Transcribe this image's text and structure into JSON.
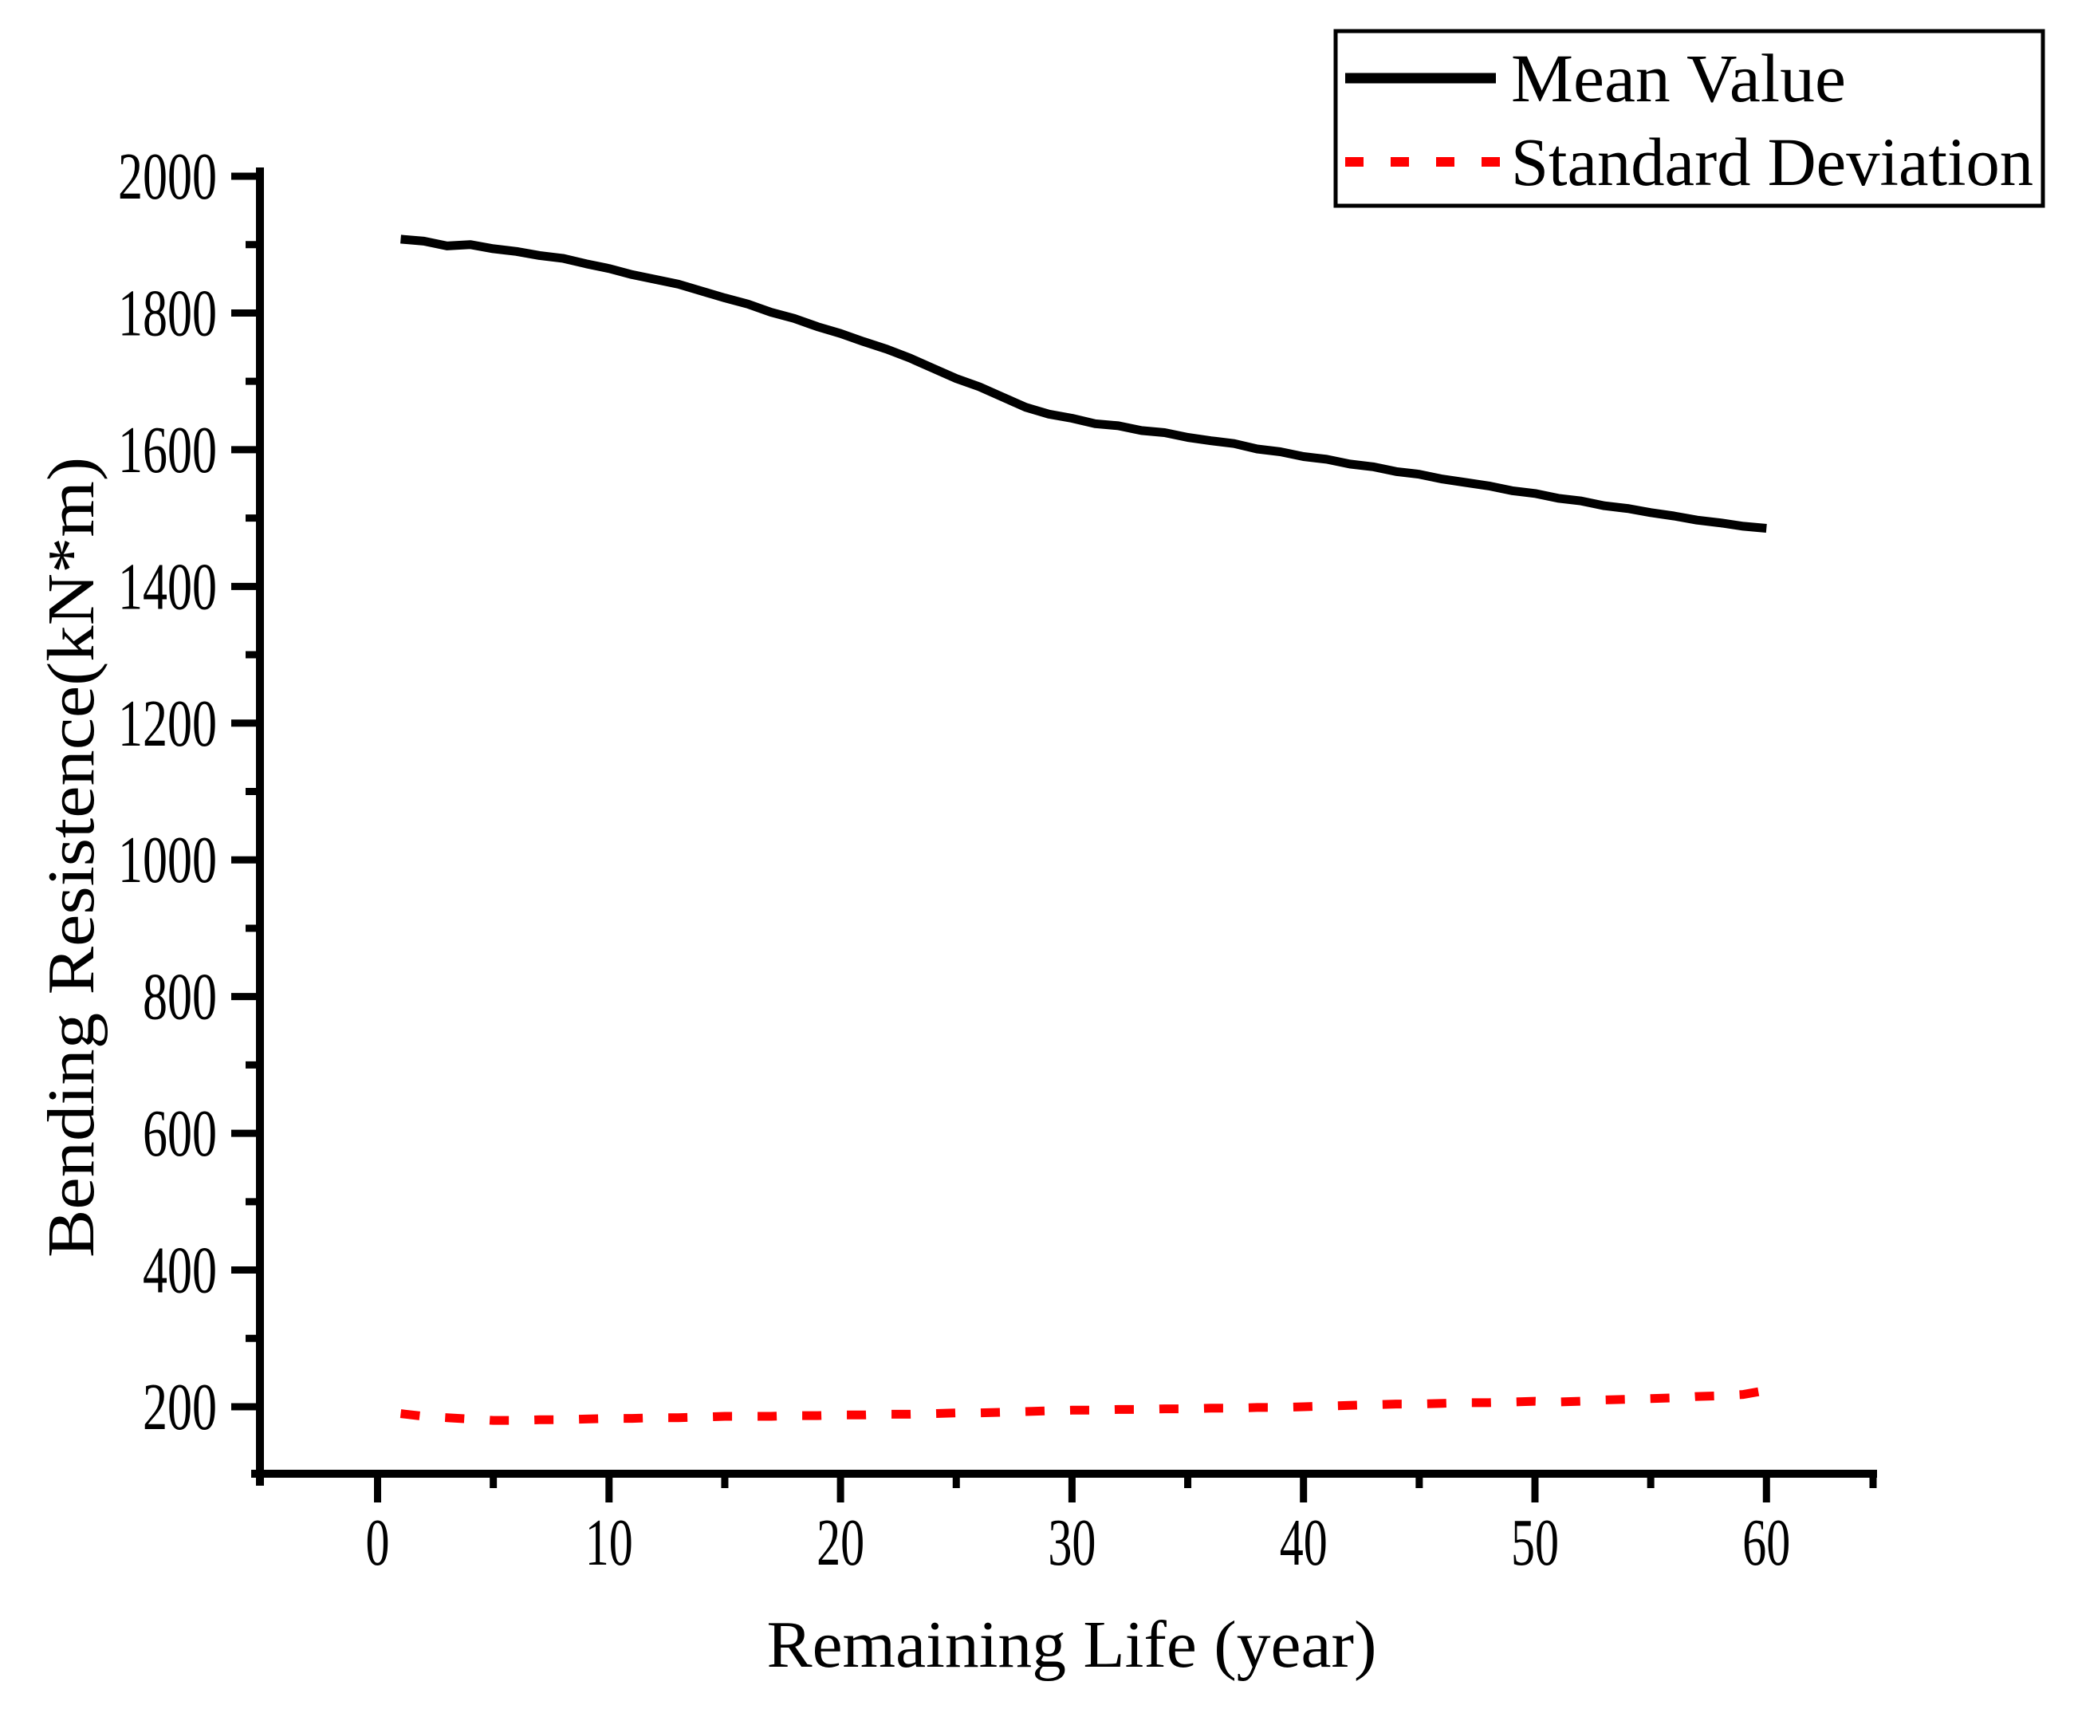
{
  "chart_data": {
    "type": "line",
    "title": "",
    "xlabel": "Remaining Life (year)",
    "ylabel": "Bending Resistence(kN*m)",
    "xlim": [
      -5.5,
      65
    ],
    "ylim": [
      100,
      2015
    ],
    "grid": false,
    "legend_position": "top-right",
    "axis_color": "#000000",
    "background_color": "#ffffff",
    "xticks_major": [
      0,
      10,
      20,
      30,
      40,
      50,
      60
    ],
    "xticks_minor": [
      5,
      15,
      25,
      35,
      45,
      55
    ],
    "yticks_major": [
      200,
      400,
      600,
      800,
      1000,
      1200,
      1400,
      1600,
      1800,
      2000
    ],
    "yticks_minor": [
      300,
      500,
      700,
      900,
      1100,
      1300,
      1500,
      1700,
      1900
    ],
    "x": [
      1,
      2,
      3,
      4,
      5,
      6,
      7,
      8,
      9,
      10,
      11,
      12,
      13,
      14,
      15,
      16,
      17,
      18,
      19,
      20,
      21,
      22,
      23,
      24,
      25,
      26,
      27,
      28,
      29,
      30,
      31,
      32,
      33,
      34,
      35,
      36,
      37,
      38,
      39,
      40,
      41,
      42,
      43,
      44,
      45,
      46,
      47,
      48,
      49,
      50,
      51,
      52,
      53,
      54,
      55,
      56,
      57,
      58,
      59,
      60
    ],
    "series": [
      {
        "name": "Mean Value",
        "color": "#000000",
        "style": "solid",
        "values": [
          1908,
          1905,
          1898,
          1900,
          1894,
          1890,
          1884,
          1880,
          1872,
          1865,
          1856,
          1849,
          1842,
          1832,
          1822,
          1813,
          1801,
          1792,
          1780,
          1770,
          1758,
          1747,
          1734,
          1719,
          1704,
          1692,
          1677,
          1662,
          1652,
          1646,
          1638,
          1635,
          1628,
          1625,
          1618,
          1613,
          1609,
          1601,
          1597,
          1590,
          1586,
          1579,
          1575,
          1568,
          1564,
          1557,
          1552,
          1547,
          1540,
          1536,
          1529,
          1525,
          1518,
          1514,
          1508,
          1503,
          1497,
          1493,
          1488,
          1485
        ]
      },
      {
        "name": "Standard Deviation",
        "color": "#FF0000",
        "style": "dashed",
        "values": [
          190,
          186,
          184,
          182,
          180,
          180,
          181,
          181,
          182,
          183,
          183,
          184,
          184,
          185,
          186,
          186,
          186,
          187,
          187,
          188,
          188,
          189,
          189,
          190,
          191,
          191,
          192,
          193,
          194,
          195,
          195,
          196,
          196,
          197,
          197,
          198,
          198,
          199,
          199,
          200,
          201,
          202,
          203,
          204,
          204,
          205,
          206,
          206,
          207,
          208,
          207,
          208,
          210,
          211,
          212,
          213,
          215,
          216,
          218,
          224
        ]
      }
    ]
  }
}
